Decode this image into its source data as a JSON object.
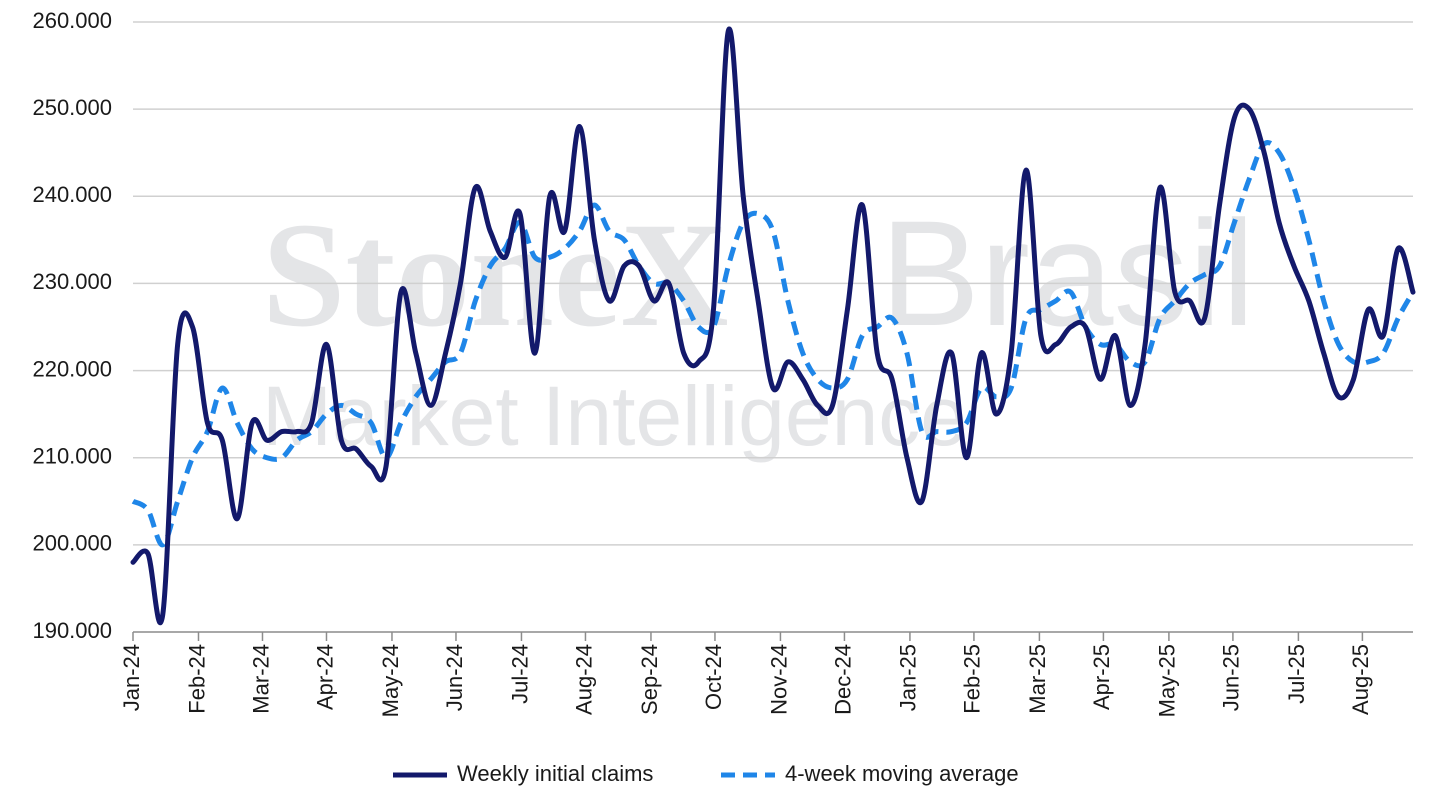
{
  "chart_data": {
    "type": "line",
    "watermark": [
      "StoneX",
      "Brasil",
      "Market Intelligence"
    ],
    "x": [
      0,
      1,
      2,
      3,
      4,
      5,
      6,
      7,
      8,
      9,
      10,
      11,
      12,
      13,
      14,
      15,
      16,
      17,
      18,
      19,
      20,
      21,
      22,
      23,
      24,
      25,
      26,
      27,
      28,
      29,
      30,
      31,
      32,
      33,
      34,
      35,
      36,
      37,
      38,
      39,
      40,
      41,
      42,
      43,
      44,
      45,
      46,
      47,
      48,
      49,
      50,
      51,
      52,
      53,
      54,
      55,
      56,
      57,
      58,
      59,
      60,
      61,
      62,
      63,
      64,
      65,
      66,
      67,
      68,
      69,
      70,
      71,
      72,
      73,
      74,
      75,
      76,
      77,
      78,
      79,
      80,
      81,
      82,
      83,
      84,
      85,
      86
    ],
    "xlim": [
      0,
      86
    ],
    "xticks": [
      {
        "value": 0,
        "label": "Jan-24"
      },
      {
        "value": 4.4,
        "label": "Feb-24"
      },
      {
        "value": 8.7,
        "label": "Mar-24"
      },
      {
        "value": 13.0,
        "label": "Apr-24"
      },
      {
        "value": 17.4,
        "label": "May-24"
      },
      {
        "value": 21.7,
        "label": "Jun-24"
      },
      {
        "value": 26.1,
        "label": "Jul-24"
      },
      {
        "value": 30.4,
        "label": "Aug-24"
      },
      {
        "value": 34.8,
        "label": "Sep-24"
      },
      {
        "value": 39.1,
        "label": "Oct-24"
      },
      {
        "value": 43.5,
        "label": "Nov-24"
      },
      {
        "value": 47.8,
        "label": "Dec-24"
      },
      {
        "value": 52.2,
        "label": "Jan-25"
      },
      {
        "value": 56.5,
        "label": "Feb-25"
      },
      {
        "value": 60.9,
        "label": "Mar-25"
      },
      {
        "value": 65.2,
        "label": "Apr-25"
      },
      {
        "value": 69.6,
        "label": "May-25"
      },
      {
        "value": 73.9,
        "label": "Jun-25"
      },
      {
        "value": 78.3,
        "label": "Jul-25"
      },
      {
        "value": 82.6,
        "label": "Aug-25"
      }
    ],
    "ylim": [
      190000,
      260000
    ],
    "yticks": [
      {
        "value": 190000,
        "label": "190.000"
      },
      {
        "value": 200000,
        "label": "200.000"
      },
      {
        "value": 210000,
        "label": "210.000"
      },
      {
        "value": 220000,
        "label": "220.000"
      },
      {
        "value": 230000,
        "label": "230.000"
      },
      {
        "value": 240000,
        "label": "240.000"
      },
      {
        "value": 250000,
        "label": "250.000"
      },
      {
        "value": 260000,
        "label": "260.000"
      }
    ],
    "grid": true,
    "legend": "bottom",
    "series": [
      {
        "name": "Weekly initial claims",
        "color": "#13196b",
        "dash": false,
        "values": [
          198000,
          199000,
          192000,
          223000,
          225000,
          214000,
          212000,
          203000,
          214000,
          212000,
          213000,
          213000,
          214000,
          223000,
          212000,
          211000,
          209000,
          209000,
          229000,
          222000,
          216000,
          222000,
          230000,
          241000,
          236000,
          233000,
          238000,
          222000,
          240000,
          236000,
          248000,
          235000,
          228000,
          232000,
          232000,
          228000,
          230000,
          222000,
          221000,
          227000,
          259000,
          240000,
          228000,
          218000,
          221000,
          219000,
          216000,
          216000,
          227000,
          239000,
          222000,
          219000,
          210000,
          205000,
          216000,
          222000,
          210000,
          222000,
          215000,
          222000,
          243000,
          224000,
          223000,
          225000,
          225000,
          219000,
          224000,
          216000,
          223000,
          241000,
          229000,
          228000,
          226000,
          239000,
          249000,
          250000,
          245000,
          237000,
          232000,
          228000,
          222000,
          217000,
          219000,
          227000,
          224000,
          234000,
          229000
        ]
      },
      {
        "name": "4-week moving average",
        "color": "#1f86e8",
        "dash": true,
        "values": [
          205000,
          204000,
          200000,
          205000,
          210000,
          213000,
          218000,
          214000,
          211000,
          210000,
          210000,
          212000,
          213000,
          215000,
          216000,
          215000,
          214000,
          210000,
          214000,
          217000,
          219000,
          221000,
          222000,
          228000,
          232000,
          234000,
          237000,
          233000,
          233000,
          234000,
          236000,
          239000,
          236000,
          235000,
          232000,
          230000,
          230000,
          228000,
          225000,
          225000,
          232000,
          237000,
          238000,
          236000,
          228000,
          222000,
          219000,
          218000,
          219000,
          224000,
          225000,
          226000,
          222000,
          213000,
          213000,
          213000,
          214000,
          218000,
          217000,
          218000,
          226000,
          227000,
          228000,
          229000,
          225000,
          223000,
          223000,
          221000,
          221000,
          226000,
          228000,
          230000,
          231000,
          232000,
          237000,
          242000,
          246000,
          245000,
          241000,
          235000,
          228000,
          223000,
          221000,
          221000,
          222000,
          226000,
          229000
        ]
      }
    ]
  }
}
